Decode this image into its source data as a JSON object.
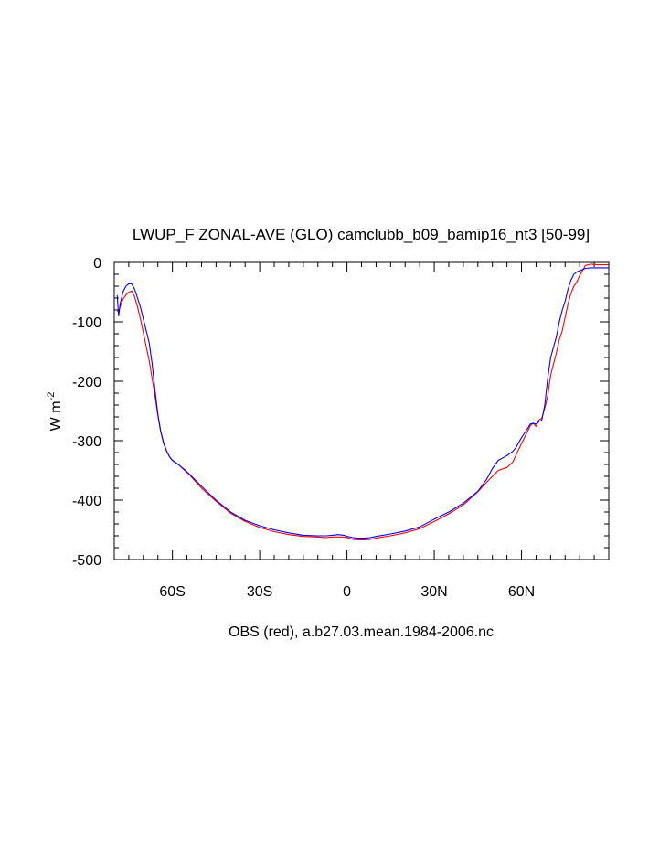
{
  "chart_data": {
    "type": "line",
    "title": "LWUP_F ZONAL-AVE (GLO) camclubb_b09_bamip16_nt3 [50-99]",
    "xlabel": "OBS (red), a.b27.03.mean.1984-2006.nc",
    "ylabel": "W m",
    "ylabel_sup": "-2",
    "xlim": [
      -80,
      90
    ],
    "ylim": [
      -500,
      0
    ],
    "x_ticks": [
      {
        "value": -60,
        "label": "60S"
      },
      {
        "value": -30,
        "label": "30S"
      },
      {
        "value": 0,
        "label": "0"
      },
      {
        "value": 30,
        "label": "30N"
      },
      {
        "value": 60,
        "label": "60N"
      }
    ],
    "y_ticks": [
      {
        "value": 0,
        "label": "0"
      },
      {
        "value": -100,
        "label": "-100"
      },
      {
        "value": -200,
        "label": "-200"
      },
      {
        "value": -300,
        "label": "-300"
      },
      {
        "value": -400,
        "label": "-400"
      },
      {
        "value": -500,
        "label": "-500"
      }
    ],
    "grid": false,
    "series": [
      {
        "color": "#0000ff",
        "x": [
          -79,
          -78.5,
          -78,
          -77,
          -76,
          -75,
          -74,
          -73,
          -72,
          -71,
          -70,
          -69,
          -68,
          -67,
          -66,
          -65,
          -64,
          -63,
          -62,
          -61,
          -60,
          -58,
          -56,
          -54,
          -52,
          -50,
          -45,
          -40,
          -35,
          -30,
          -25,
          -20,
          -15,
          -10,
          -7,
          -5,
          -3,
          -1,
          0,
          2,
          4,
          6,
          8,
          10,
          15,
          20,
          25,
          30,
          35,
          40,
          45,
          48,
          50,
          52,
          55,
          57,
          58,
          60,
          62,
          63,
          64,
          65,
          66,
          67,
          68,
          69,
          70,
          72,
          73,
          74,
          75,
          76,
          77,
          78,
          79,
          80,
          82,
          84,
          86,
          88,
          90
        ],
        "y": [
          -55,
          -90,
          -70,
          -50,
          -40,
          -36,
          -36,
          -45,
          -60,
          -75,
          -95,
          -115,
          -135,
          -170,
          -215,
          -255,
          -285,
          -305,
          -318,
          -327,
          -333,
          -340,
          -348,
          -357,
          -367,
          -377,
          -400,
          -420,
          -434,
          -443,
          -450,
          -455,
          -459,
          -460,
          -460,
          -459,
          -458,
          -459,
          -461,
          -463,
          -464,
          -464,
          -463,
          -461,
          -457,
          -452,
          -445,
          -432,
          -420,
          -405,
          -385,
          -365,
          -347,
          -333,
          -325,
          -318,
          -312,
          -295,
          -280,
          -272,
          -271,
          -272,
          -268,
          -265,
          -240,
          -195,
          -160,
          -125,
          -100,
          -80,
          -65,
          -45,
          -30,
          -20,
          -16,
          -14,
          -10,
          -9,
          -9,
          -9,
          -9
        ]
      },
      {
        "color": "#ff0000",
        "x": [
          -79,
          -78.5,
          -78,
          -77,
          -76,
          -75,
          -74,
          -73,
          -72,
          -71,
          -70,
          -69,
          -68,
          -67,
          -66,
          -65,
          -64,
          -63,
          -62,
          -61,
          -60,
          -58,
          -56,
          -54,
          -52,
          -50,
          -45,
          -40,
          -35,
          -30,
          -25,
          -20,
          -15,
          -10,
          -7,
          -5,
          -3,
          -1,
          0,
          2,
          4,
          6,
          8,
          10,
          15,
          20,
          25,
          30,
          35,
          40,
          45,
          48,
          50,
          52,
          55,
          57,
          58,
          60,
          62,
          63,
          64,
          65,
          66,
          67,
          68,
          69,
          70,
          72,
          73,
          74,
          75,
          76,
          77,
          78,
          79,
          80,
          82,
          84,
          86,
          88,
          90
        ],
        "y": [
          -80,
          -85,
          -75,
          -62,
          -55,
          -50,
          -48,
          -58,
          -75,
          -95,
          -118,
          -142,
          -165,
          -195,
          -225,
          -258,
          -285,
          -303,
          -317,
          -327,
          -333,
          -340,
          -349,
          -358,
          -369,
          -380,
          -402,
          -422,
          -436,
          -446,
          -453,
          -458,
          -461,
          -462,
          -463,
          -462,
          -462,
          -462,
          -463,
          -466,
          -467,
          -467,
          -466,
          -464,
          -460,
          -455,
          -448,
          -436,
          -423,
          -408,
          -386,
          -370,
          -360,
          -350,
          -345,
          -336,
          -325,
          -305,
          -285,
          -275,
          -270,
          -276,
          -265,
          -262,
          -245,
          -225,
          -190,
          -152,
          -130,
          -115,
          -92,
          -70,
          -52,
          -40,
          -33,
          -22,
          -5,
          -3,
          -4,
          -4,
          -4
        ]
      }
    ]
  }
}
